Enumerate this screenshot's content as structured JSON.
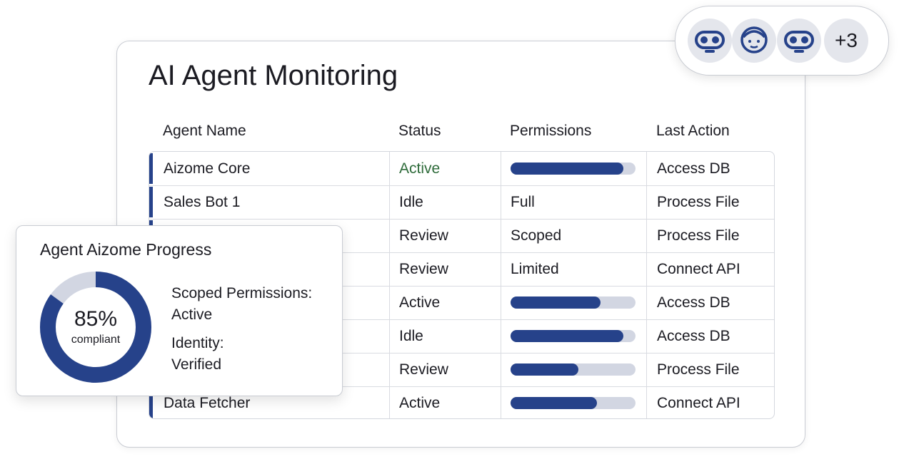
{
  "title": "AI Agent Monitoring",
  "table": {
    "headers": [
      "Agent Name",
      "Status",
      "Permissions",
      "Last Action"
    ],
    "rows": [
      {
        "name": "Aizome Core",
        "status": "Active",
        "permissions": 90,
        "last_action": "Access DB"
      },
      {
        "name": "Sales Bot 1",
        "status": "Idle",
        "permissions": "Full",
        "last_action": "Process File"
      },
      {
        "status": "Review",
        "permissions": "Scoped",
        "last_action": "Process File"
      },
      {
        "status": "Review",
        "permissions": "Limited",
        "last_action": "Connect API"
      },
      {
        "status": "Active",
        "permissions": 72,
        "last_action": "Access DB"
      },
      {
        "status": "Idle",
        "permissions": 90,
        "last_action": "Access DB"
      },
      {
        "status": "Review",
        "permissions": 54,
        "last_action": "Process File"
      },
      {
        "name": "Data Fetcher",
        "status": "Active",
        "permissions": 69,
        "last_action": "Connect API"
      }
    ]
  },
  "progress": {
    "title": "Agent Aizome Progress",
    "value": 85,
    "label": "85%",
    "caption": "compliant",
    "details": [
      {
        "label": "Scoped Permissions:",
        "value": "Active"
      },
      {
        "label": "Identity:",
        "value": "Verified"
      }
    ]
  },
  "avatars": {
    "more": "+3"
  }
}
